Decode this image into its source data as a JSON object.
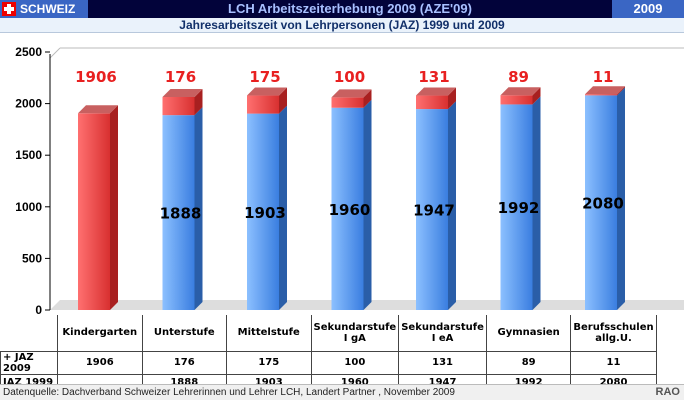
{
  "header": {
    "country": "SCHWEIZ",
    "title": "LCH Arbeitszeiterhebung 2009 (AZE'09)",
    "year": "2009",
    "subtitle": "Jahresarbeitszeit von Lehrpersonen (JAZ) 1999 und 2009"
  },
  "chart_data": {
    "type": "bar",
    "stacked": true,
    "title": "Jahresarbeitszeit von Lehrpersonen (JAZ) 1999 und 2009",
    "categories": [
      "Kindergarten",
      "Unterstufe",
      "Mittelstufe",
      "Sekundarstufe I gA",
      "Sekundarstufe I eA",
      "Gymnasien",
      "Berufsschulen allg.U."
    ],
    "series": [
      {
        "name": "JAZ 1999",
        "color": "#5b9be8",
        "values": [
          null,
          1888,
          1903,
          1960,
          1947,
          1992,
          2080
        ]
      },
      {
        "name": "+ JAZ 2009",
        "color": "#e04848",
        "values": [
          1906,
          176,
          175,
          100,
          131,
          89,
          11
        ]
      }
    ],
    "yticks": [
      0,
      500,
      1000,
      1500,
      2000,
      2500
    ],
    "ylim": [
      0,
      2500
    ],
    "grid": false
  },
  "table": {
    "row_labels": [
      "+ JAZ 2009",
      "JAZ 1999"
    ],
    "cat_lines": [
      [
        "Kindergarten",
        ""
      ],
      [
        "Unterstufe",
        ""
      ],
      [
        "Mittelstufe",
        ""
      ],
      [
        "Sekundarstufe",
        "I gA"
      ],
      [
        "Sekundarstufe",
        "I eA"
      ],
      [
        "Gymnasien",
        ""
      ],
      [
        "Berufsschulen",
        "allg.U."
      ]
    ],
    "plus2009": [
      "1906",
      "176",
      "175",
      "100",
      "131",
      "89",
      "11"
    ],
    "jaz1999": [
      "",
      "1888",
      "1903",
      "1960",
      "1947",
      "1992",
      "2080"
    ]
  },
  "footer": {
    "source": "Datenquelle: Dachverband Schweizer Lehrerinnen und Lehrer LCH, Landert Partner , November 2009",
    "brand": "RAO"
  }
}
